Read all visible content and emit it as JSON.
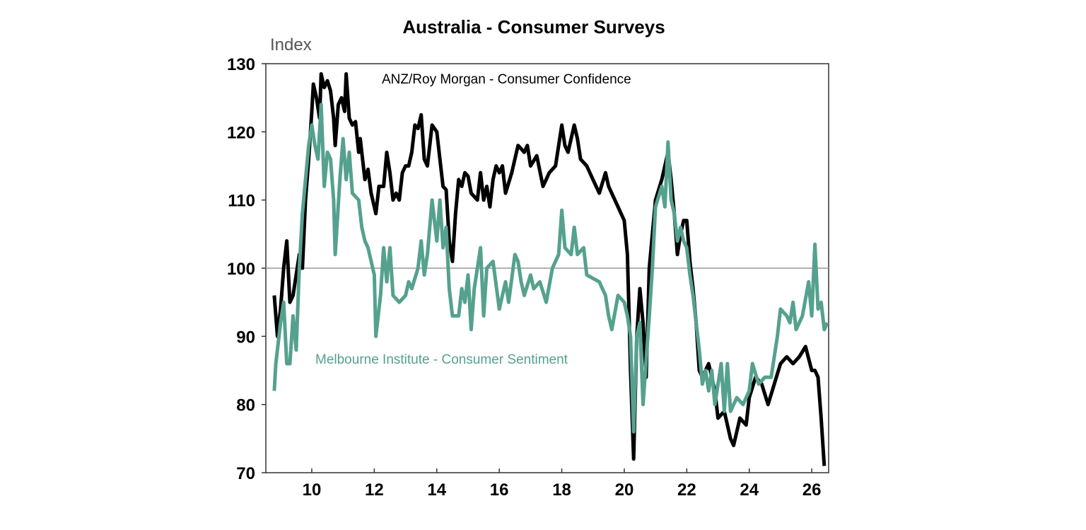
{
  "chart_data": {
    "type": "line",
    "title": "Australia - Consumer Surveys",
    "ylabel": "Index",
    "xlabel": "",
    "ylim": [
      70,
      130
    ],
    "xlim": [
      2008.53,
      2026.54
    ],
    "yticks": [
      "70",
      "80",
      "90",
      "100",
      "110",
      "120",
      "130"
    ],
    "xticks": [
      "10",
      "12",
      "14",
      "16",
      "18",
      "20",
      "22",
      "24",
      "26"
    ],
    "reference_line": 100,
    "grid": false,
    "series": [
      {
        "name": "ANZ/Roy Morgan - Consumer Confidence",
        "color": "#000000",
        "points": [
          [
            2008.8,
            96
          ],
          [
            2008.9,
            90
          ],
          [
            2009.0,
            94
          ],
          [
            2009.1,
            100
          ],
          [
            2009.2,
            104
          ],
          [
            2009.3,
            95
          ],
          [
            2009.4,
            96
          ],
          [
            2009.6,
            102
          ],
          [
            2009.7,
            100
          ],
          [
            2009.8,
            110
          ],
          [
            2009.9,
            116
          ],
          [
            2010.0,
            123
          ],
          [
            2010.05,
            127
          ],
          [
            2010.15,
            125
          ],
          [
            2010.25,
            122
          ],
          [
            2010.3,
            128.5
          ],
          [
            2010.4,
            126.5
          ],
          [
            2010.5,
            127.5
          ],
          [
            2010.6,
            126
          ],
          [
            2010.7,
            122
          ],
          [
            2010.75,
            118
          ],
          [
            2010.85,
            124
          ],
          [
            2010.95,
            125
          ],
          [
            2011.05,
            123
          ],
          [
            2011.1,
            128.5
          ],
          [
            2011.2,
            122
          ],
          [
            2011.3,
            121
          ],
          [
            2011.4,
            121.5
          ],
          [
            2011.5,
            117
          ],
          [
            2011.55,
            119
          ],
          [
            2011.7,
            113
          ],
          [
            2011.8,
            114.5
          ],
          [
            2011.9,
            111
          ],
          [
            2012.0,
            109
          ],
          [
            2012.05,
            108
          ],
          [
            2012.15,
            112
          ],
          [
            2012.3,
            112
          ],
          [
            2012.4,
            117
          ],
          [
            2012.5,
            114
          ],
          [
            2012.6,
            110
          ],
          [
            2012.7,
            111
          ],
          [
            2012.8,
            110
          ],
          [
            2012.9,
            114
          ],
          [
            2013.0,
            115
          ],
          [
            2013.1,
            115
          ],
          [
            2013.2,
            117
          ],
          [
            2013.3,
            121
          ],
          [
            2013.4,
            120.5
          ],
          [
            2013.5,
            122.5
          ],
          [
            2013.6,
            116
          ],
          [
            2013.7,
            115
          ],
          [
            2013.85,
            121
          ],
          [
            2014.0,
            120
          ],
          [
            2014.1,
            116
          ],
          [
            2014.2,
            112
          ],
          [
            2014.3,
            111.5
          ],
          [
            2014.4,
            104
          ],
          [
            2014.5,
            101
          ],
          [
            2014.6,
            108
          ],
          [
            2014.7,
            113
          ],
          [
            2014.8,
            112
          ],
          [
            2014.9,
            114
          ],
          [
            2015.0,
            113.5
          ],
          [
            2015.1,
            111
          ],
          [
            2015.2,
            110.5
          ],
          [
            2015.3,
            110
          ],
          [
            2015.4,
            114
          ],
          [
            2015.5,
            110
          ],
          [
            2015.6,
            112
          ],
          [
            2015.7,
            109
          ],
          [
            2015.8,
            113
          ],
          [
            2015.9,
            115
          ],
          [
            2016.0,
            114
          ],
          [
            2016.1,
            115
          ],
          [
            2016.2,
            111
          ],
          [
            2016.4,
            114
          ],
          [
            2016.6,
            118
          ],
          [
            2016.8,
            117
          ],
          [
            2016.9,
            118
          ],
          [
            2017.0,
            115
          ],
          [
            2017.2,
            116.5
          ],
          [
            2017.4,
            112
          ],
          [
            2017.6,
            114
          ],
          [
            2017.8,
            115
          ],
          [
            2018.0,
            121
          ],
          [
            2018.1,
            118
          ],
          [
            2018.2,
            117
          ],
          [
            2018.4,
            121
          ],
          [
            2018.5,
            119
          ],
          [
            2018.6,
            116
          ],
          [
            2018.8,
            115
          ],
          [
            2019.0,
            113
          ],
          [
            2019.2,
            111
          ],
          [
            2019.4,
            114
          ],
          [
            2019.5,
            112
          ],
          [
            2019.8,
            109
          ],
          [
            2020.0,
            107
          ],
          [
            2020.1,
            102
          ],
          [
            2020.2,
            85
          ],
          [
            2020.3,
            72
          ],
          [
            2020.4,
            90
          ],
          [
            2020.5,
            97
          ],
          [
            2020.6,
            92
          ],
          [
            2020.7,
            84
          ],
          [
            2020.8,
            100
          ],
          [
            2021.0,
            110
          ],
          [
            2021.2,
            113
          ],
          [
            2021.4,
            117
          ],
          [
            2021.5,
            113
          ],
          [
            2021.6,
            108
          ],
          [
            2021.7,
            102
          ],
          [
            2021.8,
            105
          ],
          [
            2021.9,
            107
          ],
          [
            2022.0,
            107
          ],
          [
            2022.1,
            101
          ],
          [
            2022.2,
            97
          ],
          [
            2022.3,
            92
          ],
          [
            2022.4,
            85
          ],
          [
            2022.5,
            84
          ],
          [
            2022.7,
            86
          ],
          [
            2022.9,
            82
          ],
          [
            2023.0,
            78
          ],
          [
            2023.2,
            79
          ],
          [
            2023.4,
            75
          ],
          [
            2023.5,
            74
          ],
          [
            2023.7,
            78
          ],
          [
            2023.9,
            77
          ],
          [
            2024.0,
            81
          ],
          [
            2024.2,
            84
          ],
          [
            2024.4,
            83
          ],
          [
            2024.6,
            80
          ],
          [
            2024.8,
            83
          ],
          [
            2025.0,
            86
          ],
          [
            2025.2,
            87
          ],
          [
            2025.4,
            86
          ],
          [
            2025.6,
            87
          ],
          [
            2025.8,
            88.5
          ],
          [
            2026.0,
            85
          ],
          [
            2026.1,
            85
          ],
          [
            2026.2,
            84
          ],
          [
            2026.3,
            78
          ],
          [
            2026.4,
            71
          ]
        ]
      },
      {
        "name": "Melbourne Institute - Consumer Sentiment",
        "color": "#55a18e",
        "points": [
          [
            2008.8,
            82
          ],
          [
            2008.85,
            86
          ],
          [
            2009.0,
            92
          ],
          [
            2009.1,
            95
          ],
          [
            2009.2,
            86
          ],
          [
            2009.3,
            86
          ],
          [
            2009.4,
            93
          ],
          [
            2009.5,
            88
          ],
          [
            2009.6,
            100
          ],
          [
            2009.7,
            108
          ],
          [
            2009.8,
            113
          ],
          [
            2009.9,
            118
          ],
          [
            2010.0,
            121
          ],
          [
            2010.1,
            118
          ],
          [
            2010.2,
            116
          ],
          [
            2010.3,
            124
          ],
          [
            2010.4,
            112
          ],
          [
            2010.5,
            117
          ],
          [
            2010.6,
            116
          ],
          [
            2010.7,
            110
          ],
          [
            2010.75,
            102
          ],
          [
            2010.9,
            113
          ],
          [
            2011.0,
            119
          ],
          [
            2011.1,
            113
          ],
          [
            2011.2,
            117
          ],
          [
            2011.3,
            111
          ],
          [
            2011.5,
            110
          ],
          [
            2011.6,
            106
          ],
          [
            2011.7,
            104
          ],
          [
            2011.8,
            103
          ],
          [
            2012.0,
            99
          ],
          [
            2012.05,
            90
          ],
          [
            2012.2,
            96
          ],
          [
            2012.3,
            103
          ],
          [
            2012.4,
            98
          ],
          [
            2012.5,
            103
          ],
          [
            2012.6,
            96
          ],
          [
            2012.8,
            95
          ],
          [
            2013.0,
            96
          ],
          [
            2013.1,
            98
          ],
          [
            2013.2,
            97
          ],
          [
            2013.4,
            100
          ],
          [
            2013.5,
            104
          ],
          [
            2013.6,
            99
          ],
          [
            2013.7,
            102
          ],
          [
            2013.85,
            110
          ],
          [
            2014.0,
            104
          ],
          [
            2014.1,
            110
          ],
          [
            2014.2,
            103
          ],
          [
            2014.3,
            106
          ],
          [
            2014.4,
            97
          ],
          [
            2014.5,
            93
          ],
          [
            2014.7,
            93
          ],
          [
            2014.8,
            97
          ],
          [
            2014.9,
            95
          ],
          [
            2015.0,
            99
          ],
          [
            2015.1,
            91
          ],
          [
            2015.2,
            97
          ],
          [
            2015.4,
            103
          ],
          [
            2015.5,
            93
          ],
          [
            2015.6,
            100
          ],
          [
            2015.8,
            101
          ],
          [
            2016.0,
            94
          ],
          [
            2016.1,
            96
          ],
          [
            2016.2,
            98
          ],
          [
            2016.3,
            95
          ],
          [
            2016.5,
            102
          ],
          [
            2016.6,
            101
          ],
          [
            2016.7,
            98
          ],
          [
            2016.8,
            96
          ],
          [
            2017.0,
            99
          ],
          [
            2017.1,
            97
          ],
          [
            2017.3,
            98
          ],
          [
            2017.5,
            95
          ],
          [
            2017.7,
            100
          ],
          [
            2017.9,
            102
          ],
          [
            2018.0,
            108.5
          ],
          [
            2018.1,
            103
          ],
          [
            2018.3,
            102
          ],
          [
            2018.4,
            106
          ],
          [
            2018.5,
            102
          ],
          [
            2018.7,
            103
          ],
          [
            2018.8,
            99
          ],
          [
            2019.0,
            98.5
          ],
          [
            2019.2,
            98
          ],
          [
            2019.4,
            96
          ],
          [
            2019.5,
            93
          ],
          [
            2019.6,
            91
          ],
          [
            2019.8,
            96
          ],
          [
            2020.0,
            95
          ],
          [
            2020.1,
            93
          ],
          [
            2020.2,
            90
          ],
          [
            2020.3,
            76
          ],
          [
            2020.4,
            90
          ],
          [
            2020.5,
            92
          ],
          [
            2020.6,
            80
          ],
          [
            2020.8,
            93
          ],
          [
            2020.9,
            100
          ],
          [
            2021.0,
            109
          ],
          [
            2021.2,
            112
          ],
          [
            2021.3,
            109
          ],
          [
            2021.4,
            118.5
          ],
          [
            2021.5,
            110
          ],
          [
            2021.6,
            108
          ],
          [
            2021.7,
            104
          ],
          [
            2021.8,
            106
          ],
          [
            2021.9,
            104
          ],
          [
            2022.0,
            103
          ],
          [
            2022.1,
            99
          ],
          [
            2022.2,
            96
          ],
          [
            2022.3,
            92
          ],
          [
            2022.4,
            88
          ],
          [
            2022.5,
            83
          ],
          [
            2022.6,
            85
          ],
          [
            2022.7,
            82
          ],
          [
            2022.8,
            85
          ],
          [
            2022.9,
            80
          ],
          [
            2023.1,
            86
          ],
          [
            2023.2,
            79
          ],
          [
            2023.3,
            86
          ],
          [
            2023.4,
            79
          ],
          [
            2023.6,
            81
          ],
          [
            2023.8,
            80
          ],
          [
            2024.0,
            82
          ],
          [
            2024.1,
            86
          ],
          [
            2024.3,
            83
          ],
          [
            2024.5,
            84
          ],
          [
            2024.7,
            84
          ],
          [
            2024.9,
            90
          ],
          [
            2025.0,
            94
          ],
          [
            2025.2,
            93
          ],
          [
            2025.3,
            92
          ],
          [
            2025.4,
            95
          ],
          [
            2025.5,
            91
          ],
          [
            2025.7,
            93
          ],
          [
            2025.9,
            98
          ],
          [
            2026.0,
            93
          ],
          [
            2026.1,
            103.5
          ],
          [
            2026.2,
            94
          ],
          [
            2026.3,
            95
          ],
          [
            2026.4,
            91
          ],
          [
            2026.5,
            92
          ]
        ]
      }
    ]
  }
}
